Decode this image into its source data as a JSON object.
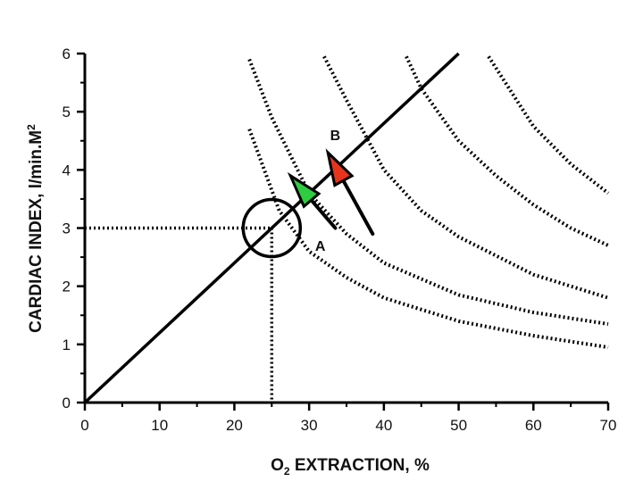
{
  "chart_data": {
    "type": "line",
    "xlim": [
      0,
      70
    ],
    "ylim": [
      0,
      6
    ],
    "x_ticks": [
      0,
      10,
      20,
      30,
      40,
      50,
      60,
      70
    ],
    "y_ticks": [
      0,
      1,
      2,
      3,
      4,
      5,
      6
    ],
    "xlabel": {
      "main": "O",
      "sub": "2",
      "rest": " EXTRACTION, %"
    },
    "ylabel": {
      "main": "CARDIAC INDEX, l/min.M",
      "sup": "2"
    },
    "grid": false,
    "legend": "none",
    "series": [
      {
        "style": "solid",
        "color": "#000000",
        "x": [
          0,
          50
        ],
        "y": [
          0,
          6
        ]
      },
      {
        "style": "dotted",
        "color": "#000000",
        "x": [
          22,
          26,
          30,
          35,
          40,
          50,
          60,
          70
        ],
        "y": [
          4.7,
          3.3,
          2.6,
          2.15,
          1.8,
          1.4,
          1.15,
          0.95
        ]
      },
      {
        "style": "dotted",
        "color": "#000000",
        "x": [
          22,
          25,
          30,
          35,
          40,
          50,
          60,
          70
        ],
        "y": [
          5.9,
          4.9,
          3.6,
          2.9,
          2.4,
          1.85,
          1.55,
          1.35
        ]
      },
      {
        "style": "dotted",
        "color": "#000000",
        "x": [
          32,
          35,
          40,
          45,
          50,
          60,
          70
        ],
        "y": [
          5.95,
          5.2,
          4.0,
          3.3,
          2.85,
          2.2,
          1.8
        ]
      },
      {
        "style": "dotted",
        "color": "#000000",
        "x": [
          43,
          45,
          50,
          55,
          60,
          65,
          70
        ],
        "y": [
          5.95,
          5.4,
          4.5,
          3.9,
          3.4,
          3.0,
          2.7
        ]
      },
      {
        "style": "dotted",
        "color": "#000000",
        "x": [
          54,
          60,
          65,
          70
        ],
        "y": [
          5.95,
          4.75,
          4.1,
          3.6
        ]
      }
    ],
    "reference_point": {
      "x": 25,
      "y": 3
    },
    "annotations": [
      {
        "text": "A",
        "x": 31.5,
        "y": 2.7
      },
      {
        "text": "B",
        "x": 33.5,
        "y": 4.6
      }
    ],
    "arrows": [
      {
        "color": "#2ecc40",
        "from": [
          33.5,
          3.0
        ],
        "to": [
          27.5,
          3.9
        ]
      },
      {
        "color": "#e8341c",
        "from": [
          38.5,
          2.9
        ],
        "to": [
          32.5,
          4.3
        ]
      }
    ]
  }
}
